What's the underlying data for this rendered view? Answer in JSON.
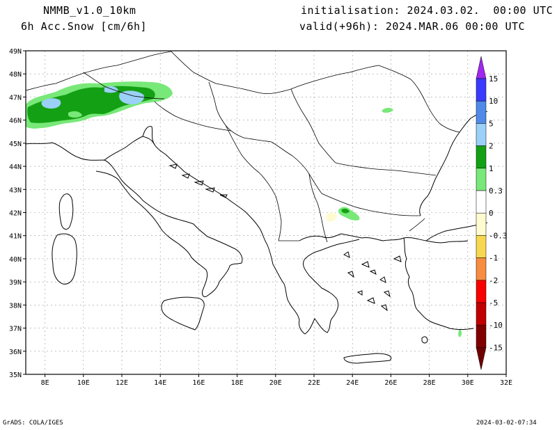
{
  "header": {
    "model": "NMMB_v1.0_10km",
    "field": "6h Acc.Snow [cm/6h]",
    "init": "initialisation: 2024.03.02.  00:00 UTC",
    "valid": "valid(+96h): 2024.MAR.06 00:00 UTC"
  },
  "footer": {
    "credit": "GrADS: COLA/IGES",
    "timestamp": "2024-03-02-07:34"
  },
  "map": {
    "lat_labels": [
      "49N",
      "48N",
      "47N",
      "46N",
      "45N",
      "44N",
      "43N",
      "42N",
      "41N",
      "40N",
      "39N",
      "38N",
      "37N",
      "36N",
      "35N"
    ],
    "lon_labels": [
      "8E",
      "10E",
      "12E",
      "14E",
      "16E",
      "18E",
      "20E",
      "22E",
      "24E",
      "26E",
      "28E",
      "30E",
      "32E"
    ],
    "lat_range": [
      35,
      49
    ],
    "lon_range": [
      7,
      32
    ]
  },
  "colorbar": {
    "labels": [
      "15",
      "10",
      "5",
      "2",
      "1",
      "0.3",
      "0",
      "-0.3",
      "-1",
      "-2",
      "-5",
      "-10",
      "-15"
    ],
    "colors": [
      "#3a3aff",
      "#4f8ae8",
      "#9bd0f8",
      "#14a014",
      "#78e878",
      "#ffffff",
      "#ffffff",
      "#fffbd0",
      "#f8d850",
      "#f88c40",
      "#f80000",
      "#c00000",
      "#800000"
    ],
    "top_arrow_color": "#a028f0",
    "bottom_arrow_color": "#700000"
  }
}
